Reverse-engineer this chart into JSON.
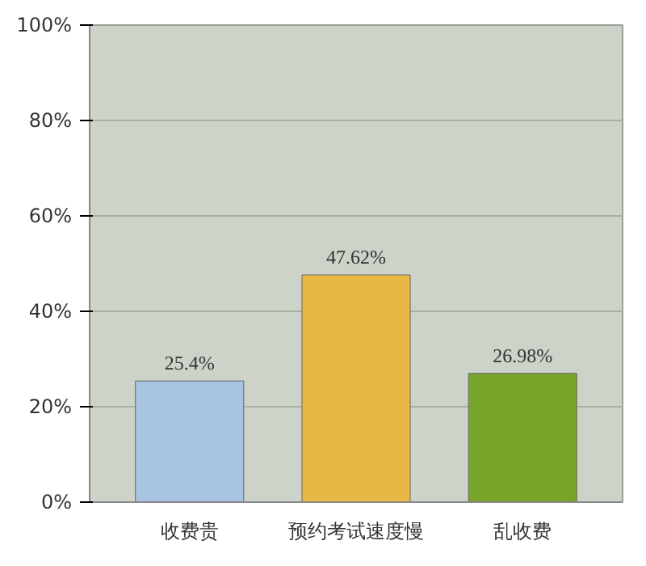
{
  "chart_data": {
    "type": "bar",
    "categories": [
      "收费贵",
      "预约考试速度慢",
      "乱收费"
    ],
    "values": [
      25.4,
      47.62,
      26.98
    ],
    "colors": [
      "#a9c4e2",
      "#e9b844",
      "#78a42a"
    ],
    "value_labels": [
      "25.4%",
      "47.62%",
      "26.98%"
    ],
    "ylim": [
      0,
      100
    ],
    "yticks": [
      {
        "value": 0,
        "label": "0%"
      },
      {
        "value": 20,
        "label": "20%"
      },
      {
        "value": 40,
        "label": "40%"
      },
      {
        "value": 60,
        "label": "60%"
      },
      {
        "value": 80,
        "label": "80%"
      },
      {
        "value": 100,
        "label": "100%"
      }
    ],
    "grid": "y"
  }
}
